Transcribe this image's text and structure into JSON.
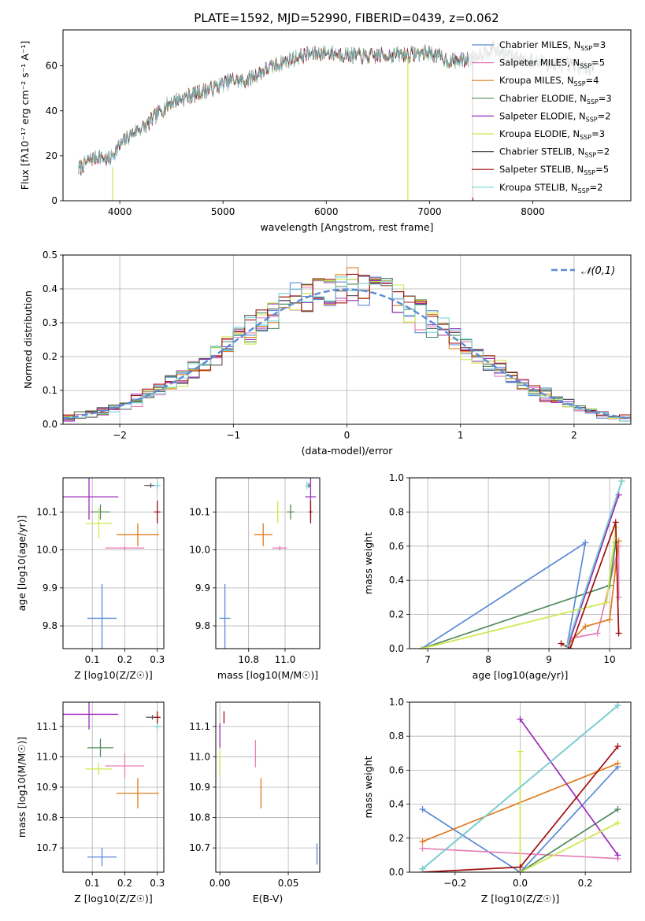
{
  "title": "PLATE=1592, MJD=52990, FIBERID=0439, z=0.062",
  "colors": {
    "chabrier_miles": "#5b8bd6",
    "salpeter_miles": "#e67fb8",
    "kroupa_miles": "#e07b1e",
    "chabrier_elodie": "#4f8a5c",
    "salpeter_elodie": "#9b2cb8",
    "kroupa_elodie": "#cde84a",
    "chabrier_stelib": "#555555",
    "salpeter_stelib": "#a01010",
    "kroupa_stelib": "#77d4d9",
    "normal": "#5b8bd6"
  },
  "chart_data": [
    {
      "id": "spectrum",
      "type": "line",
      "xlabel": "wavelength [Angstrom, rest frame]",
      "ylabel": "Flux [fλ10⁻¹⁷ erg cm⁻² s⁻¹ A⁻¹]",
      "xlim": [
        3450,
        8950
      ],
      "ylim": [
        0,
        76
      ],
      "xticks": [
        4000,
        5000,
        6000,
        7000,
        8000
      ],
      "yticks": [
        0,
        20,
        40,
        60
      ],
      "legend_position": "right",
      "series": [
        {
          "name": "Chabrier MILES, NSSP=3",
          "key": "chabrier_miles"
        },
        {
          "name": "Salpeter MILES, NSSP=5",
          "key": "salpeter_miles"
        },
        {
          "name": "Kroupa MILES, NSSP=4",
          "key": "kroupa_miles"
        },
        {
          "name": "Chabrier ELODIE, NSSP=3",
          "key": "chabrier_elodie"
        },
        {
          "name": "Salpeter ELODIE, NSSP=2",
          "key": "salpeter_elodie"
        },
        {
          "name": "Kroupa ELODIE, NSSP=3",
          "key": "kroupa_elodie"
        },
        {
          "name": "Chabrier STELIB, NSSP=2",
          "key": "chabrier_stelib"
        },
        {
          "name": "Salpeter STELIB, NSSP=5",
          "key": "salpeter_stelib"
        },
        {
          "name": "Kroupa STELIB, NSSP=2",
          "key": "kroupa_stelib"
        }
      ],
      "continuum": [
        [
          3600,
          14
        ],
        [
          3700,
          18
        ],
        [
          3800,
          20
        ],
        [
          3900,
          18
        ],
        [
          3950,
          22
        ],
        [
          4050,
          27
        ],
        [
          4150,
          31
        ],
        [
          4250,
          33
        ],
        [
          4350,
          38
        ],
        [
          4500,
          44
        ],
        [
          4700,
          47
        ],
        [
          4900,
          50
        ],
        [
          5100,
          54
        ],
        [
          5200,
          53
        ],
        [
          5400,
          58
        ],
        [
          5600,
          62
        ],
        [
          5800,
          65
        ],
        [
          6000,
          66
        ],
        [
          6200,
          65
        ],
        [
          6400,
          64
        ],
        [
          6600,
          65
        ],
        [
          6800,
          65
        ],
        [
          7000,
          66
        ],
        [
          7200,
          62
        ],
        [
          7400,
          63
        ],
        [
          7600,
          68
        ],
        [
          7800,
          64
        ],
        [
          8000,
          62
        ],
        [
          8200,
          61
        ],
        [
          8400,
          60
        ],
        [
          8500,
          59
        ],
        [
          8600,
          60
        ]
      ],
      "drops": [
        {
          "x": 3930,
          "key": "kroupa_elodie",
          "from": 15
        },
        {
          "x": 6790,
          "key": "kroupa_elodie",
          "from": 64
        },
        {
          "x": 7420,
          "key": "salpeter_stelib",
          "from": 62
        }
      ]
    },
    {
      "id": "residuals",
      "type": "bar",
      "xlabel": "(data-model)/error",
      "ylabel": "Normed distribution",
      "xlim": [
        -2.5,
        2.5
      ],
      "ylim": [
        0,
        0.5
      ],
      "xticks": [
        -2,
        -1,
        0,
        1,
        2
      ],
      "yticks": [
        0.0,
        0.1,
        0.2,
        0.3,
        0.4,
        0.5
      ],
      "bin_width": 0.1,
      "legend": "𝒩(0,1)",
      "legend_position": "top-right"
    },
    {
      "id": "age_vs_Z",
      "type": "scatter",
      "xlabel": "Z [log10(Z/Z☉)]",
      "ylabel": "age  [log10(age/yr)]",
      "xlim": [
        0.01,
        0.32
      ],
      "ylim": [
        9.74,
        10.19
      ],
      "xticks": [
        0.1,
        0.2,
        0.3
      ],
      "yticks": [
        9.8,
        9.9,
        10.0,
        10.1
      ],
      "points": [
        {
          "key": "chabrier_miles",
          "x": 0.13,
          "y": 9.82,
          "xerr": 0.045,
          "yerr": 0.09
        },
        {
          "key": "salpeter_miles",
          "x": 0.2,
          "y": 10.005,
          "xerr": 0.06,
          "yerr": 0.0
        },
        {
          "key": "kroupa_miles",
          "x": 0.24,
          "y": 10.04,
          "xerr": 0.065,
          "yerr": 0.03
        },
        {
          "key": "chabrier_elodie",
          "x": 0.125,
          "y": 10.1,
          "xerr": 0.03,
          "yerr": 0.02
        },
        {
          "key": "salpeter_elodie",
          "x": 0.09,
          "y": 10.14,
          "xerr": 0.09,
          "yerr": 0.06
        },
        {
          "key": "kroupa_elodie",
          "x": 0.12,
          "y": 10.07,
          "xerr": 0.04,
          "yerr": 0.04
        },
        {
          "key": "chabrier_stelib",
          "x": 0.28,
          "y": 10.17,
          "xerr": 0.02,
          "yerr": 0.0
        },
        {
          "key": "salpeter_stelib",
          "x": 0.3,
          "y": 10.1,
          "xerr": 0.01,
          "yerr": 0.03
        },
        {
          "key": "kroupa_stelib",
          "x": 0.3,
          "y": 10.17,
          "xerr": 0.01,
          "yerr": 0.01
        }
      ]
    },
    {
      "id": "age_vs_mass",
      "type": "scatter",
      "xlabel": "mass [log10(M/M☉)]",
      "ylabel": "",
      "xlim": [
        10.62,
        11.19
      ],
      "ylim": [
        9.74,
        10.19
      ],
      "xticks": [
        10.8,
        11.0
      ],
      "yticks": [
        9.8,
        9.9,
        10.0,
        10.1
      ],
      "points": [
        {
          "key": "chabrier_miles",
          "x": 10.67,
          "y": 9.82,
          "xerr": 0.03,
          "yerr": 0.09
        },
        {
          "key": "salpeter_miles",
          "x": 10.97,
          "y": 10.005,
          "xerr": 0.04,
          "yerr": 0.0
        },
        {
          "key": "kroupa_miles",
          "x": 10.88,
          "y": 10.04,
          "xerr": 0.05,
          "yerr": 0.03
        },
        {
          "key": "chabrier_elodie",
          "x": 11.03,
          "y": 10.1,
          "xerr": 0.02,
          "yerr": 0.02
        },
        {
          "key": "salpeter_elodie",
          "x": 11.14,
          "y": 10.14,
          "xerr": 0.03,
          "yerr": 0.06
        },
        {
          "key": "kroupa_elodie",
          "x": 10.96,
          "y": 10.1,
          "xerr": 0.01,
          "yerr": 0.03
        },
        {
          "key": "chabrier_stelib",
          "x": 11.13,
          "y": 10.17,
          "xerr": 0.01,
          "yerr": 0.0
        },
        {
          "key": "salpeter_stelib",
          "x": 11.14,
          "y": 10.1,
          "xerr": 0.01,
          "yerr": 0.03
        },
        {
          "key": "kroupa_stelib",
          "x": 11.12,
          "y": 10.17,
          "xerr": 0.01,
          "yerr": 0.01
        }
      ]
    },
    {
      "id": "mass_weight_vs_age",
      "type": "line",
      "xlabel": "age  [log10(age/yr)]",
      "ylabel": "mass weight",
      "xlim": [
        6.7,
        10.35
      ],
      "ylim": [
        0,
        1
      ],
      "xticks": [
        7,
        8,
        9,
        10
      ],
      "yticks": [
        0.0,
        0.2,
        0.4,
        0.6,
        0.8,
        1.0
      ],
      "series": [
        {
          "key": "chabrier_miles",
          "x": [
            9.3,
            9.6,
            6.9
          ],
          "y": [
            0.02,
            0.62,
            0.0
          ]
        },
        {
          "key": "salpeter_miles",
          "x": [
            9.35,
            9.8,
            10.15,
            10.15
          ],
          "y": [
            0.06,
            0.09,
            0.6,
            0.3
          ]
        },
        {
          "key": "kroupa_miles",
          "x": [
            9.35,
            9.6,
            10.0,
            10.15
          ],
          "y": [
            0.04,
            0.13,
            0.17,
            0.63
          ]
        },
        {
          "key": "chabrier_elodie",
          "x": [
            6.9,
            10.0,
            10.1
          ],
          "y": [
            0.0,
            0.37,
            0.62
          ]
        },
        {
          "key": "salpeter_elodie",
          "x": [
            9.3,
            10.15
          ],
          "y": [
            0.0,
            0.9
          ]
        },
        {
          "key": "kroupa_elodie",
          "x": [
            6.9,
            9.95,
            10.1
          ],
          "y": [
            0.0,
            0.27,
            0.71
          ]
        },
        {
          "key": "chabrier_stelib",
          "x": [
            9.3,
            10.2
          ],
          "y": [
            0.02,
            0.98
          ]
        },
        {
          "key": "salpeter_stelib",
          "x": [
            9.2,
            9.35,
            10.1,
            10.15
          ],
          "y": [
            0.03,
            0.0,
            0.74,
            0.09
          ]
        },
        {
          "key": "kroupa_stelib",
          "x": [
            9.3,
            10.2
          ],
          "y": [
            0.02,
            0.98
          ]
        }
      ]
    },
    {
      "id": "mass_vs_Z",
      "type": "scatter",
      "xlabel": "Z [log10(Z/Z☉)]",
      "ylabel": "mass [log10(M/M☉)]",
      "xlim": [
        0.01,
        0.32
      ],
      "ylim": [
        10.62,
        11.18
      ],
      "xticks": [
        0.1,
        0.2,
        0.3
      ],
      "yticks": [
        10.7,
        10.8,
        10.9,
        11.0,
        11.1
      ],
      "points": [
        {
          "key": "chabrier_miles",
          "x": 0.13,
          "y": 10.67,
          "xerr": 0.045,
          "yerr": 0.03
        },
        {
          "key": "salpeter_miles",
          "x": 0.2,
          "y": 10.97,
          "xerr": 0.06,
          "yerr": 0.04
        },
        {
          "key": "kroupa_miles",
          "x": 0.24,
          "y": 10.88,
          "xerr": 0.065,
          "yerr": 0.05
        },
        {
          "key": "chabrier_elodie",
          "x": 0.125,
          "y": 11.03,
          "xerr": 0.04,
          "yerr": 0.03
        },
        {
          "key": "salpeter_elodie",
          "x": 0.09,
          "y": 11.14,
          "xerr": 0.09,
          "yerr": 0.05
        },
        {
          "key": "kroupa_elodie",
          "x": 0.12,
          "y": 10.96,
          "xerr": 0.04,
          "yerr": 0.02
        },
        {
          "key": "chabrier_stelib",
          "x": 0.285,
          "y": 11.13,
          "xerr": 0.02,
          "yerr": 0.0
        },
        {
          "key": "salpeter_stelib",
          "x": 0.3,
          "y": 11.13,
          "xerr": 0.01,
          "yerr": 0.02
        },
        {
          "key": "kroupa_stelib",
          "x": 0.3,
          "y": 11.1,
          "xerr": 0.01,
          "yerr": 0.01
        }
      ]
    },
    {
      "id": "mass_vs_ebv",
      "type": "scatter",
      "xlabel": "E(B-V)",
      "ylabel": "",
      "xlim": [
        -0.003,
        0.073
      ],
      "ylim": [
        10.62,
        11.18
      ],
      "xticks": [
        0.0,
        0.05
      ],
      "yticks": [
        10.7,
        10.8,
        10.9,
        11.0,
        11.1
      ],
      "points": [
        {
          "key": "chabrier_miles",
          "x": 0.071,
          "y": 10.68,
          "xerr": 0.0,
          "yerr": 0.035
        },
        {
          "key": "salpeter_miles",
          "x": 0.026,
          "y": 11.01,
          "xerr": 0.0,
          "yerr": 0.045
        },
        {
          "key": "kroupa_miles",
          "x": 0.03,
          "y": 10.88,
          "xerr": 0.0,
          "yerr": 0.05
        },
        {
          "key": "salpeter_elodie",
          "x": 0.0,
          "y": 11.07,
          "xerr": 0.0,
          "yerr": 0.04
        },
        {
          "key": "kroupa_elodie",
          "x": 0.0,
          "y": 10.98,
          "xerr": 0.0,
          "yerr": 0.04
        },
        {
          "key": "salpeter_stelib",
          "x": 0.003,
          "y": 11.13,
          "xerr": 0.0,
          "yerr": 0.02
        }
      ]
    },
    {
      "id": "mass_weight_vs_Z",
      "type": "line",
      "xlabel": "Z [log10(Z/Z☉)]",
      "ylabel": "mass weight",
      "xlim": [
        -0.34,
        0.34
      ],
      "ylim": [
        0,
        1
      ],
      "xticks": [
        -0.2,
        0.0,
        0.2
      ],
      "yticks": [
        0.0,
        0.2,
        0.4,
        0.6,
        0.8,
        1.0
      ],
      "series": [
        {
          "key": "chabrier_miles",
          "x": [
            -0.3,
            0.0,
            0.3
          ],
          "y": [
            0.37,
            0.0,
            0.62
          ]
        },
        {
          "key": "salpeter_miles",
          "x": [
            -0.3,
            0.3
          ],
          "y": [
            0.14,
            0.08
          ]
        },
        {
          "key": "kroupa_miles",
          "x": [
            -0.3,
            0.3
          ],
          "y": [
            0.18,
            0.64
          ]
        },
        {
          "key": "chabrier_elodie",
          "x": [
            0.0,
            0.3
          ],
          "y": [
            0.0,
            0.37
          ]
        },
        {
          "key": "salpeter_elodie",
          "x": [
            0.0,
            0.3
          ],
          "y": [
            0.9,
            0.1
          ]
        },
        {
          "key": "kroupa_elodie",
          "x": [
            0.0,
            0.0,
            0.3
          ],
          "y": [
            0.71,
            0.0,
            0.29
          ]
        },
        {
          "key": "chabrier_stelib",
          "x": [
            -0.3,
            0.3
          ],
          "y": [
            0.02,
            0.98
          ]
        },
        {
          "key": "salpeter_stelib",
          "x": [
            -0.3,
            0.0,
            0.3
          ],
          "y": [
            0.0,
            0.03,
            0.74
          ]
        },
        {
          "key": "kroupa_stelib",
          "x": [
            -0.3,
            0.3
          ],
          "y": [
            0.02,
            0.98
          ]
        }
      ]
    }
  ]
}
